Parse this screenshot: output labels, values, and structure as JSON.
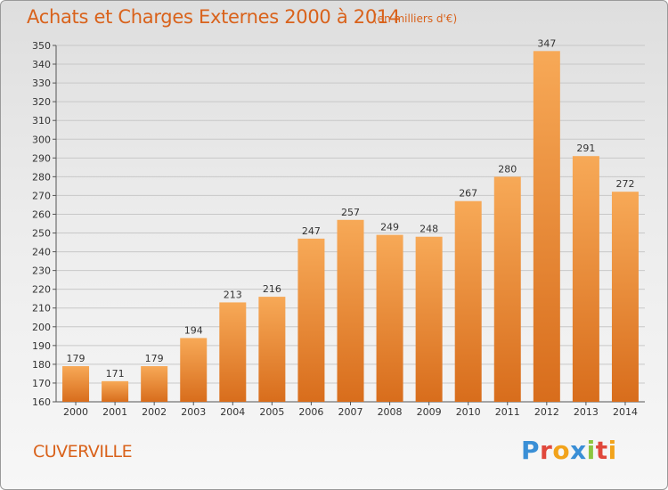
{
  "header": {
    "title": "Achats et Charges Externes 2000 à 2014",
    "subtitle": "(en milliers d'€)"
  },
  "footer": {
    "commune": "CUVERVILLE",
    "brand_letters": [
      "P",
      "r",
      "o",
      "x",
      "i",
      "t",
      "i"
    ],
    "brand_colors": [
      "#3a8fd6",
      "#e0483c",
      "#f2a31b",
      "#3a8fd6",
      "#8cc63f",
      "#e0483c",
      "#f2a31b"
    ]
  },
  "colors": {
    "bar_top": "#f7a957",
    "bar_bottom": "#d86d1c",
    "grid": "#c8c8c8",
    "title": "#d9621b"
  },
  "chart_data": {
    "type": "bar",
    "title": "Achats et Charges Externes 2000 à 2014",
    "subtitle": "(en milliers d'€)",
    "xlabel": "",
    "ylabel": "",
    "categories": [
      "2000",
      "2001",
      "2002",
      "2003",
      "2004",
      "2005",
      "2006",
      "2007",
      "2008",
      "2009",
      "2010",
      "2011",
      "2012",
      "2013",
      "2014"
    ],
    "values": [
      179,
      171,
      179,
      194,
      213,
      216,
      247,
      257,
      249,
      248,
      267,
      280,
      347,
      291,
      272
    ],
    "ylim": [
      160,
      350
    ],
    "ytick_step": 10,
    "grid": true,
    "data_labels": true
  }
}
